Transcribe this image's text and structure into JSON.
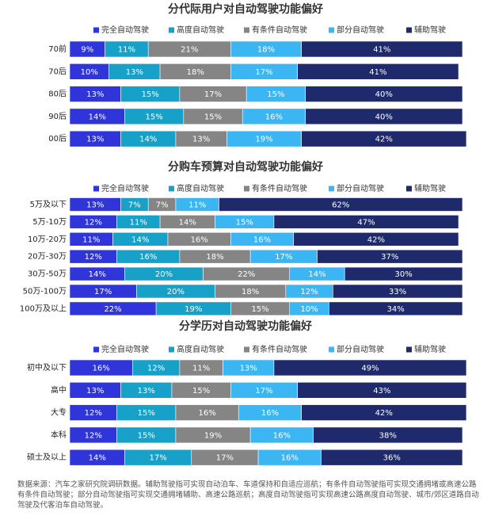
{
  "chart_data": [
    {
      "type": "stacked-bar-horizontal",
      "title": "分代际用户对自动驾驶功能偏好",
      "categories": [
        "70前",
        "70后",
        "80后",
        "90后",
        "00后"
      ],
      "xlim": [
        0,
        100
      ],
      "series": [
        {
          "name": "完全自动驾驶",
          "color": "#2f35d8",
          "values": [
            9,
            10,
            13,
            14,
            13
          ],
          "value_labels": [
            "9%",
            "10%",
            "13%",
            "14%",
            "13%"
          ]
        },
        {
          "name": "高度自动驾驶",
          "color": "#17a0c8",
          "values": [
            11,
            13,
            15,
            15,
            14
          ],
          "value_labels": [
            "11%",
            "13%",
            "15%",
            "15%",
            "14%"
          ]
        },
        {
          "name": "有条件自动驾驶",
          "color": "#858585",
          "values": [
            21,
            18,
            17,
            15,
            13
          ],
          "value_labels": [
            "21%",
            "18%",
            "17%",
            "15%",
            "13%"
          ]
        },
        {
          "name": "部分自动驾驶",
          "color": "#3cb6f3",
          "values": [
            18,
            17,
            15,
            16,
            19
          ],
          "value_labels": [
            "18%",
            "17%",
            "15%",
            "16%",
            "19%"
          ]
        },
        {
          "name": "辅助驾驶",
          "color": "#1f2a6c",
          "values": [
            41,
            41,
            40,
            40,
            42
          ],
          "value_labels": [
            "41%",
            "41%",
            "40%",
            "40%",
            "42%"
          ]
        }
      ]
    },
    {
      "type": "stacked-bar-horizontal",
      "title": "分购车预算对自动驾驶功能偏好",
      "categories": [
        "5万及以下",
        "5万-10万",
        "10万-20万",
        "20万-30万",
        "30万-50万",
        "50万-100万",
        "100万及以上"
      ],
      "xlim": [
        0,
        100
      ],
      "series": [
        {
          "name": "完全自动驾驶",
          "color": "#2f35d8",
          "values": [
            13,
            12,
            11,
            12,
            14,
            17,
            22
          ],
          "value_labels": [
            "13%",
            "12%",
            "11%",
            "12%",
            "14%",
            "17%",
            "22%"
          ]
        },
        {
          "name": "高度自动驾驶",
          "color": "#17a0c8",
          "values": [
            7,
            11,
            14,
            16,
            20,
            20,
            19
          ],
          "value_labels": [
            "7%",
            "11%",
            "14%",
            "16%",
            "20%",
            "20%",
            "19%"
          ]
        },
        {
          "name": "有条件自动驾驶",
          "color": "#858585",
          "values": [
            7,
            14,
            16,
            18,
            22,
            18,
            15
          ],
          "value_labels": [
            "7%",
            "14%",
            "16%",
            "18%",
            "22%",
            "18%",
            "15%"
          ]
        },
        {
          "name": "部分自动驾驶",
          "color": "#3cb6f3",
          "values": [
            11,
            15,
            16,
            17,
            14,
            12,
            10
          ],
          "value_labels": [
            "11%",
            "15%",
            "16%",
            "17%",
            "14%",
            "12%",
            "10%"
          ]
        },
        {
          "name": "辅助驾驶",
          "color": "#1f2a6c",
          "values": [
            62,
            47,
            42,
            37,
            30,
            33,
            34
          ],
          "value_labels": [
            "62%",
            "47%",
            "42%",
            "37%",
            "30%",
            "33%",
            "34%"
          ]
        }
      ]
    },
    {
      "type": "stacked-bar-horizontal",
      "title": "分学历对自动驾驶功能偏好",
      "categories": [
        "初中及以下",
        "高中",
        "大专",
        "本科",
        "硕士及以上"
      ],
      "xlim": [
        0,
        100
      ],
      "series": [
        {
          "name": "完全自动驾驶",
          "color": "#2f35d8",
          "values": [
            16,
            13,
            12,
            12,
            14
          ],
          "value_labels": [
            "16%",
            "13%",
            "12%",
            "12%",
            "14%"
          ]
        },
        {
          "name": "高度自动驾驶",
          "color": "#17a0c8",
          "values": [
            12,
            13,
            15,
            15,
            17
          ],
          "value_labels": [
            "12%",
            "13%",
            "15%",
            "15%",
            "17%"
          ]
        },
        {
          "name": "有条件自动驾驶",
          "color": "#858585",
          "values": [
            11,
            15,
            16,
            19,
            17
          ],
          "value_labels": [
            "11%",
            "15%",
            "16%",
            "19%",
            "17%"
          ]
        },
        {
          "name": "部分自动驾驶",
          "color": "#3cb6f3",
          "values": [
            13,
            17,
            16,
            16,
            16
          ],
          "value_labels": [
            "13%",
            "17%",
            "16%",
            "16%",
            "16%"
          ]
        },
        {
          "name": "辅助驾驶",
          "color": "#1f2a6c",
          "values": [
            49,
            43,
            42,
            38,
            36
          ],
          "value_labels": [
            "49%",
            "43%",
            "42%",
            "38%",
            "36%"
          ]
        }
      ]
    }
  ],
  "footnote": "数据来源：汽车之家研究院调研数据。辅助驾驶指可实现自动泊车、车道保持和自适应巡航；有条件自动驾驶指可实现交通拥堵或高速公路有条件自动驾驶；部分自动驾驶指可实现交通拥堵辅助、高速公路巡航；高度自动驾驶指可实现高速公路高度自动驾驶、城市/郊区道路自动驾驶及代客泊车自动驾驶。"
}
